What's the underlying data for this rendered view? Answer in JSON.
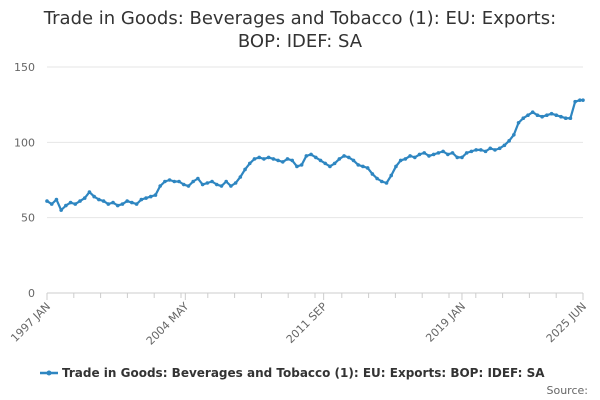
{
  "chart_data": {
    "type": "line",
    "title_lines": [
      "Trade in Goods: Beverages and Tobacco (1): EU: Exports:",
      "BOP: IDEF: SA"
    ],
    "xlabel": "",
    "ylabel": "",
    "x_range": [
      "1997-01",
      "2025-06"
    ],
    "ylim": [
      0,
      150
    ],
    "y_ticks": [
      0,
      50,
      100,
      150
    ],
    "x_ticks": [
      {
        "date": "1997-01",
        "label": "1997 JAN"
      },
      {
        "date": "2004-05",
        "label": "2004 MAY"
      },
      {
        "date": "2011-09",
        "label": "2011 SEP"
      },
      {
        "date": "2019-01",
        "label": "2019 JAN"
      },
      {
        "date": "2025-06",
        "label": "2025 JUN"
      }
    ],
    "grid": "horizontal",
    "legend_position": "bottom",
    "source_label": "Source:",
    "colors": {
      "series": "#2e86c1",
      "grid": "#e6e6e6",
      "axis": "#cccccc"
    },
    "series": [
      {
        "name": "Trade in Goods: Beverages and Tobacco (1): EU: Exports: BOP: IDEF: SA",
        "points": [
          [
            "1997-01",
            61
          ],
          [
            "1997-04",
            59
          ],
          [
            "1997-07",
            62
          ],
          [
            "1997-10",
            55
          ],
          [
            "1998-01",
            58
          ],
          [
            "1998-04",
            60
          ],
          [
            "1998-07",
            59
          ],
          [
            "1998-10",
            61
          ],
          [
            "1999-01",
            63
          ],
          [
            "1999-04",
            67
          ],
          [
            "1999-07",
            64
          ],
          [
            "1999-10",
            62
          ],
          [
            "2000-01",
            61
          ],
          [
            "2000-04",
            59
          ],
          [
            "2000-07",
            60
          ],
          [
            "2000-10",
            58
          ],
          [
            "2001-01",
            59
          ],
          [
            "2001-04",
            61
          ],
          [
            "2001-07",
            60
          ],
          [
            "2001-10",
            59
          ],
          [
            "2002-01",
            62
          ],
          [
            "2002-04",
            63
          ],
          [
            "2002-07",
            64
          ],
          [
            "2002-10",
            65
          ],
          [
            "2003-01",
            71
          ],
          [
            "2003-04",
            74
          ],
          [
            "2003-07",
            75
          ],
          [
            "2003-10",
            74
          ],
          [
            "2004-01",
            74
          ],
          [
            "2004-04",
            72
          ],
          [
            "2004-07",
            71
          ],
          [
            "2004-10",
            74
          ],
          [
            "2005-01",
            76
          ],
          [
            "2005-04",
            72
          ],
          [
            "2005-07",
            73
          ],
          [
            "2005-10",
            74
          ],
          [
            "2006-01",
            72
          ],
          [
            "2006-04",
            71
          ],
          [
            "2006-07",
            74
          ],
          [
            "2006-10",
            71
          ],
          [
            "2007-01",
            73
          ],
          [
            "2007-04",
            77
          ],
          [
            "2007-07",
            82
          ],
          [
            "2007-10",
            86
          ],
          [
            "2008-01",
            89
          ],
          [
            "2008-04",
            90
          ],
          [
            "2008-07",
            89
          ],
          [
            "2008-10",
            90
          ],
          [
            "2009-01",
            89
          ],
          [
            "2009-04",
            88
          ],
          [
            "2009-07",
            87
          ],
          [
            "2009-10",
            89
          ],
          [
            "2010-01",
            88
          ],
          [
            "2010-04",
            84
          ],
          [
            "2010-07",
            85
          ],
          [
            "2010-10",
            91
          ],
          [
            "2011-01",
            92
          ],
          [
            "2011-04",
            90
          ],
          [
            "2011-07",
            88
          ],
          [
            "2011-10",
            86
          ],
          [
            "2012-01",
            84
          ],
          [
            "2012-04",
            86
          ],
          [
            "2012-07",
            89
          ],
          [
            "2012-10",
            91
          ],
          [
            "2013-01",
            90
          ],
          [
            "2013-04",
            88
          ],
          [
            "2013-07",
            85
          ],
          [
            "2013-10",
            84
          ],
          [
            "2014-01",
            83
          ],
          [
            "2014-04",
            79
          ],
          [
            "2014-07",
            76
          ],
          [
            "2014-10",
            74
          ],
          [
            "2015-01",
            73
          ],
          [
            "2015-04",
            78
          ],
          [
            "2015-07",
            84
          ],
          [
            "2015-10",
            88
          ],
          [
            "2016-01",
            89
          ],
          [
            "2016-04",
            91
          ],
          [
            "2016-07",
            90
          ],
          [
            "2016-10",
            92
          ],
          [
            "2017-01",
            93
          ],
          [
            "2017-04",
            91
          ],
          [
            "2017-07",
            92
          ],
          [
            "2017-10",
            93
          ],
          [
            "2018-01",
            94
          ],
          [
            "2018-04",
            92
          ],
          [
            "2018-07",
            93
          ],
          [
            "2018-10",
            90
          ],
          [
            "2019-01",
            90
          ],
          [
            "2019-04",
            93
          ],
          [
            "2019-07",
            94
          ],
          [
            "2019-10",
            95
          ],
          [
            "2020-01",
            95
          ],
          [
            "2020-04",
            94
          ],
          [
            "2020-07",
            96
          ],
          [
            "2020-10",
            95
          ],
          [
            "2021-01",
            96
          ],
          [
            "2021-04",
            98
          ],
          [
            "2021-07",
            101
          ],
          [
            "2021-10",
            105
          ],
          [
            "2022-01",
            113
          ],
          [
            "2022-04",
            116
          ],
          [
            "2022-07",
            118
          ],
          [
            "2022-10",
            120
          ],
          [
            "2023-01",
            118
          ],
          [
            "2023-04",
            117
          ],
          [
            "2023-07",
            118
          ],
          [
            "2023-10",
            119
          ],
          [
            "2024-01",
            118
          ],
          [
            "2024-04",
            117
          ],
          [
            "2024-07",
            116
          ],
          [
            "2024-10",
            116
          ],
          [
            "2025-01",
            127
          ],
          [
            "2025-04",
            128
          ],
          [
            "2025-06",
            128
          ]
        ]
      }
    ]
  }
}
